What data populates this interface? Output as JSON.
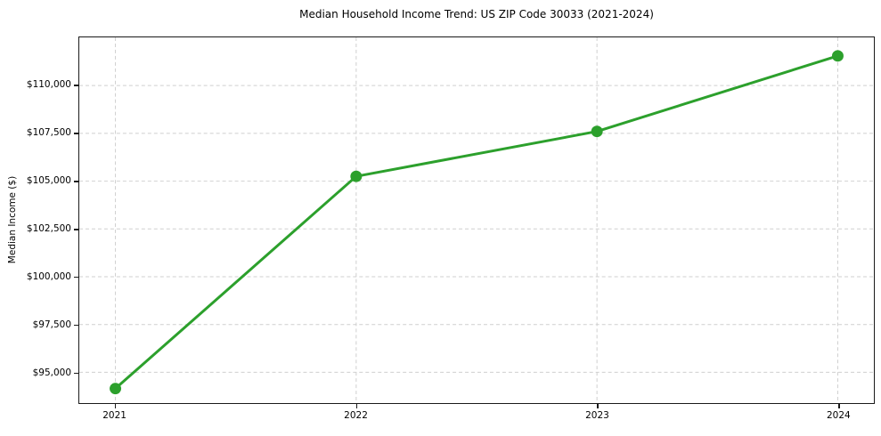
{
  "chart_data": {
    "type": "line",
    "title": "Median Household Income Trend: US ZIP Code 30033 (2021-2024)",
    "xlabel": "",
    "ylabel": "Median Income ($)",
    "series": [
      {
        "name": "Median Household Income",
        "x": [
          2021,
          2022,
          2023,
          2024
        ],
        "values": [
          94150,
          105250,
          107600,
          111550
        ]
      }
    ],
    "x_ticks": {
      "values": [
        2021,
        2022,
        2023,
        2024
      ],
      "labels": [
        "2021",
        "2022",
        "2023",
        "2024"
      ]
    },
    "y_ticks": {
      "values": [
        95000,
        97500,
        100000,
        102500,
        105000,
        107500,
        110000
      ],
      "labels": [
        "$95,000",
        "$97,500",
        "$100,000",
        "$102,500",
        "$105,000",
        "$107,500",
        "$110,000"
      ]
    },
    "xlim": [
      2020.85,
      2024.15
    ],
    "ylim": [
      93390,
      112520
    ],
    "grid": true,
    "grid_style": "dashed",
    "legend": false,
    "colors": {
      "line": "#2ca02c",
      "marker": "#2ca02c",
      "grid": "#cfcfcf",
      "spine": "#1a1a1a",
      "text": "#000000",
      "background": "#ffffff"
    },
    "marker_radius": 6.5,
    "line_width": 3
  }
}
